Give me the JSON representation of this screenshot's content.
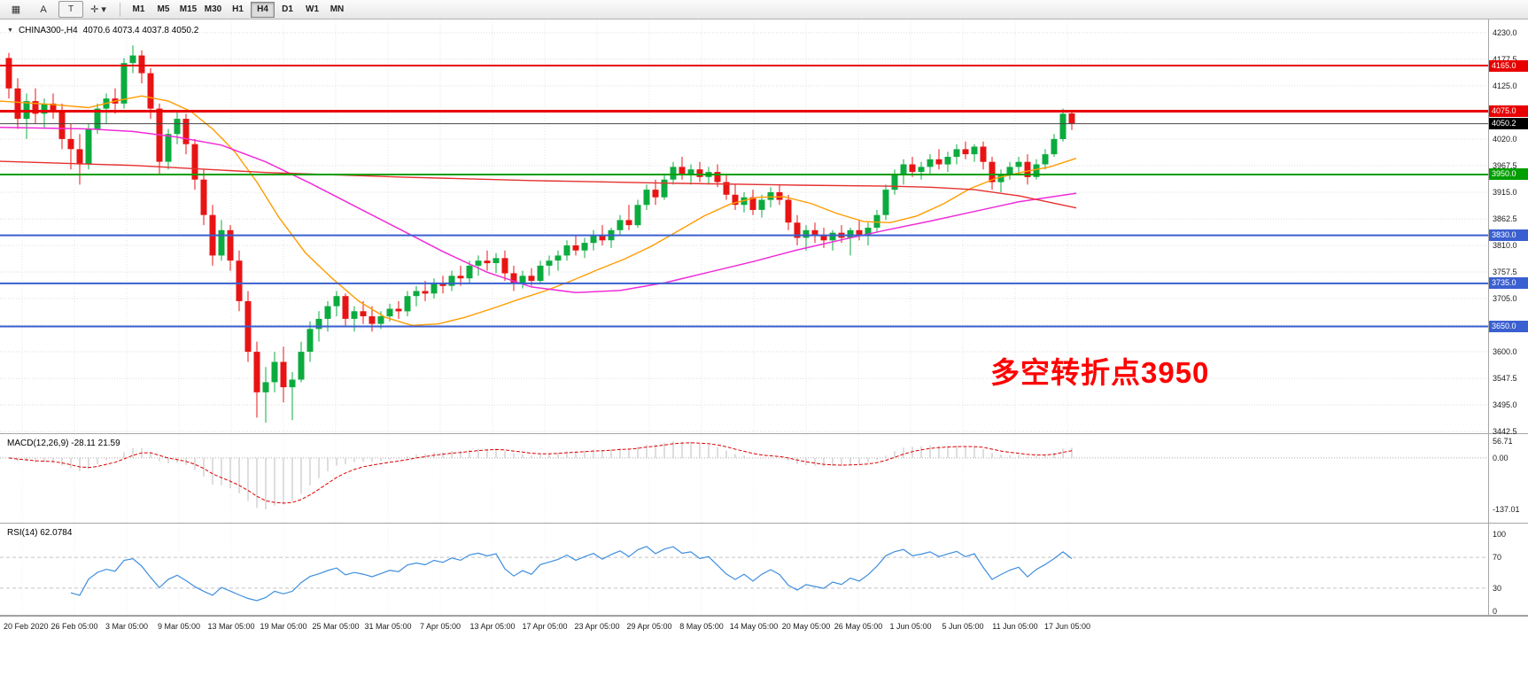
{
  "toolbar": {
    "icons": [
      {
        "name": "chart-window-icon",
        "glyph": "▦"
      },
      {
        "name": "annotation-a-icon",
        "glyph": "A"
      },
      {
        "name": "text-label-icon",
        "glyph": "T"
      },
      {
        "name": "crosshair-icon",
        "glyph": "✛ ▾"
      }
    ],
    "timeframes": [
      "M1",
      "M5",
      "M15",
      "M30",
      "H1",
      "H4",
      "D1",
      "W1",
      "MN"
    ],
    "active_timeframe": "H4"
  },
  "chart": {
    "symbol_label": "CHINA300-,H4",
    "ohlc_label": "4070.6 4073.4 4037.8 4050.2",
    "annotation": "多空转折点3950",
    "current_price": {
      "value": "4050.2",
      "price": 4050.2
    },
    "price_ticks": [
      "4230.0",
      "4177.5",
      "4125.0",
      "4072.5",
      "4020.0",
      "3967.5",
      "3915.0",
      "3862.5",
      "3810.0",
      "3757.5",
      "3705.0",
      "3652.5",
      "3600.0",
      "3547.5",
      "3495.0",
      "3442.5"
    ],
    "levels": [
      {
        "price": 4165.0,
        "label": "4165.0",
        "color": "#e80000",
        "width": 2
      },
      {
        "price": 4075.0,
        "label": "4075.0",
        "color": "#e80000",
        "width": 3
      },
      {
        "price": 3950.0,
        "label": "3950.0",
        "color": "#009e00",
        "width": 2
      },
      {
        "price": 3830.0,
        "label": "3830.0",
        "color": "#3a5fd0",
        "width": 2
      },
      {
        "price": 3735.0,
        "label": "3735.0",
        "color": "#3a5fd0",
        "width": 2
      },
      {
        "price": 3650.0,
        "label": "3650.0",
        "color": "#3a5fd0",
        "width": 2
      }
    ],
    "dates": [
      "20 Feb 2020",
      "26 Feb 05:00",
      "3 Mar 05:00",
      "9 Mar 05:00",
      "13 Mar 05:00",
      "19 Mar 05:00",
      "25 Mar 05:00",
      "31 Mar 05:00",
      "7 Apr 05:00",
      "13 Apr 05:00",
      "17 Apr 05:00",
      "23 Apr 05:00",
      "29 Apr 05:00",
      "8 May 05:00",
      "14 May 05:00",
      "20 May 05:00",
      "26 May 05:00",
      "1 Jun 05:00",
      "5 Jun 05:00",
      "11 Jun 05:00",
      "17 Jun 05:00"
    ]
  },
  "chart_data": {
    "type": "candlestick",
    "title": "CHINA300-,H4",
    "up_color": "#0cab3f",
    "down_color": "#e81414",
    "candles": [
      [
        4180,
        4190,
        4100,
        4120
      ],
      [
        4120,
        4140,
        4040,
        4060
      ],
      [
        4060,
        4110,
        4020,
        4095
      ],
      [
        4095,
        4120,
        4050,
        4070
      ],
      [
        4070,
        4100,
        4040,
        4090
      ],
      [
        4090,
        4110,
        4060,
        4075
      ],
      [
        4075,
        4090,
        4000,
        4020
      ],
      [
        4020,
        4050,
        3960,
        4000
      ],
      [
        4000,
        4030,
        3930,
        3970
      ],
      [
        3970,
        4050,
        3960,
        4040
      ],
      [
        4040,
        4090,
        4030,
        4080
      ],
      [
        4080,
        4110,
        4050,
        4100
      ],
      [
        4100,
        4120,
        4070,
        4090
      ],
      [
        4090,
        4180,
        4080,
        4170
      ],
      [
        4170,
        4205,
        4150,
        4185
      ],
      [
        4185,
        4195,
        4130,
        4150
      ],
      [
        4150,
        4160,
        4060,
        4080
      ],
      [
        4080,
        4090,
        3950,
        3975
      ],
      [
        3975,
        4040,
        3960,
        4030
      ],
      [
        4030,
        4075,
        4010,
        4060
      ],
      [
        4060,
        4070,
        3990,
        4010
      ],
      [
        4010,
        4020,
        3920,
        3940
      ],
      [
        3940,
        3960,
        3850,
        3870
      ],
      [
        3870,
        3890,
        3770,
        3790
      ],
      [
        3790,
        3860,
        3780,
        3840
      ],
      [
        3840,
        3850,
        3760,
        3780
      ],
      [
        3780,
        3800,
        3680,
        3700
      ],
      [
        3700,
        3720,
        3580,
        3600
      ],
      [
        3600,
        3620,
        3470,
        3520
      ],
      [
        3520,
        3570,
        3460,
        3540
      ],
      [
        3540,
        3600,
        3520,
        3580
      ],
      [
        3580,
        3610,
        3500,
        3530
      ],
      [
        3530,
        3560,
        3465,
        3545
      ],
      [
        3545,
        3620,
        3540,
        3600
      ],
      [
        3600,
        3660,
        3580,
        3645
      ],
      [
        3645,
        3680,
        3620,
        3665
      ],
      [
        3665,
        3700,
        3640,
        3690
      ],
      [
        3690,
        3720,
        3670,
        3710
      ],
      [
        3710,
        3715,
        3650,
        3665
      ],
      [
        3665,
        3690,
        3640,
        3680
      ],
      [
        3680,
        3700,
        3655,
        3670
      ],
      [
        3670,
        3690,
        3640,
        3655
      ],
      [
        3655,
        3680,
        3645,
        3670
      ],
      [
        3670,
        3695,
        3660,
        3685
      ],
      [
        3685,
        3700,
        3665,
        3680
      ],
      [
        3680,
        3720,
        3670,
        3710
      ],
      [
        3710,
        3730,
        3690,
        3720
      ],
      [
        3720,
        3740,
        3700,
        3715
      ],
      [
        3715,
        3745,
        3705,
        3735
      ],
      [
        3735,
        3750,
        3715,
        3730
      ],
      [
        3730,
        3760,
        3720,
        3750
      ],
      [
        3750,
        3770,
        3730,
        3745
      ],
      [
        3745,
        3780,
        3735,
        3770
      ],
      [
        3770,
        3790,
        3750,
        3780
      ],
      [
        3780,
        3800,
        3760,
        3775
      ],
      [
        3775,
        3795,
        3755,
        3785
      ],
      [
        3785,
        3800,
        3740,
        3755
      ],
      [
        3755,
        3770,
        3720,
        3735
      ],
      [
        3735,
        3760,
        3725,
        3750
      ],
      [
        3750,
        3765,
        3730,
        3740
      ],
      [
        3740,
        3780,
        3735,
        3770
      ],
      [
        3770,
        3790,
        3750,
        3780
      ],
      [
        3780,
        3800,
        3760,
        3790
      ],
      [
        3790,
        3820,
        3780,
        3810
      ],
      [
        3810,
        3830,
        3790,
        3800
      ],
      [
        3800,
        3825,
        3785,
        3815
      ],
      [
        3815,
        3840,
        3800,
        3830
      ],
      [
        3830,
        3850,
        3810,
        3820
      ],
      [
        3820,
        3845,
        3805,
        3840
      ],
      [
        3840,
        3870,
        3830,
        3860
      ],
      [
        3860,
        3890,
        3840,
        3850
      ],
      [
        3850,
        3900,
        3845,
        3890
      ],
      [
        3890,
        3930,
        3880,
        3920
      ],
      [
        3920,
        3940,
        3890,
        3905
      ],
      [
        3905,
        3950,
        3900,
        3940
      ],
      [
        3940,
        3975,
        3930,
        3965
      ],
      [
        3965,
        3985,
        3940,
        3950
      ],
      [
        3950,
        3970,
        3930,
        3960
      ],
      [
        3960,
        3975,
        3935,
        3945
      ],
      [
        3945,
        3965,
        3930,
        3955
      ],
      [
        3955,
        3970,
        3925,
        3935
      ],
      [
        3935,
        3950,
        3900,
        3910
      ],
      [
        3910,
        3930,
        3880,
        3890
      ],
      [
        3890,
        3915,
        3875,
        3905
      ],
      [
        3905,
        3920,
        3870,
        3880
      ],
      [
        3880,
        3910,
        3865,
        3900
      ],
      [
        3900,
        3925,
        3885,
        3915
      ],
      [
        3915,
        3930,
        3890,
        3900
      ],
      [
        3900,
        3910,
        3840,
        3855
      ],
      [
        3855,
        3870,
        3810,
        3825
      ],
      [
        3825,
        3850,
        3800,
        3840
      ],
      [
        3840,
        3855,
        3815,
        3830
      ],
      [
        3830,
        3845,
        3805,
        3820
      ],
      [
        3820,
        3840,
        3800,
        3835
      ],
      [
        3835,
        3850,
        3815,
        3825
      ],
      [
        3825,
        3845,
        3790,
        3840
      ],
      [
        3840,
        3860,
        3820,
        3830
      ],
      [
        3830,
        3855,
        3810,
        3845
      ],
      [
        3845,
        3880,
        3835,
        3870
      ],
      [
        3870,
        3930,
        3860,
        3920
      ],
      [
        3920,
        3960,
        3910,
        3950
      ],
      [
        3950,
        3980,
        3930,
        3970
      ],
      [
        3970,
        3985,
        3945,
        3955
      ],
      [
        3955,
        3975,
        3940,
        3965
      ],
      [
        3965,
        3990,
        3950,
        3980
      ],
      [
        3980,
        4000,
        3960,
        3970
      ],
      [
        3970,
        3995,
        3955,
        3985
      ],
      [
        3985,
        4010,
        3970,
        4000
      ],
      [
        4000,
        4015,
        3980,
        3990
      ],
      [
        3990,
        4010,
        3975,
        4005
      ],
      [
        4005,
        4015,
        3960,
        3975
      ],
      [
        3975,
        3985,
        3920,
        3935
      ],
      [
        3935,
        3960,
        3915,
        3950
      ],
      [
        3950,
        3975,
        3940,
        3965
      ],
      [
        3965,
        3985,
        3950,
        3975
      ],
      [
        3975,
        3990,
        3930,
        3945
      ],
      [
        3945,
        3980,
        3940,
        3970
      ],
      [
        3970,
        4000,
        3960,
        3990
      ],
      [
        3990,
        4030,
        3985,
        4020
      ],
      [
        4020,
        4080,
        4015,
        4070
      ],
      [
        4070.6,
        4073.4,
        4037.8,
        4050.2
      ]
    ],
    "ma_lines": [
      {
        "name": "ma-fast-orange",
        "color": "#ff9c00",
        "width": 1.4,
        "points": [
          [
            0,
            4095
          ],
          [
            60,
            4088
          ],
          [
            100,
            4082
          ],
          [
            130,
            4095
          ],
          [
            160,
            4105
          ],
          [
            190,
            4095
          ],
          [
            215,
            4075
          ],
          [
            240,
            4040
          ],
          [
            265,
            3995
          ],
          [
            290,
            3935
          ],
          [
            315,
            3865
          ],
          [
            345,
            3795
          ],
          [
            375,
            3745
          ],
          [
            405,
            3700
          ],
          [
            435,
            3668
          ],
          [
            465,
            3652
          ],
          [
            495,
            3655
          ],
          [
            525,
            3668
          ],
          [
            555,
            3685
          ],
          [
            585,
            3703
          ],
          [
            615,
            3720
          ],
          [
            645,
            3740
          ],
          [
            675,
            3762
          ],
          [
            705,
            3783
          ],
          [
            735,
            3808
          ],
          [
            765,
            3838
          ],
          [
            795,
            3868
          ],
          [
            825,
            3892
          ],
          [
            855,
            3905
          ],
          [
            885,
            3906
          ],
          [
            915,
            3893
          ],
          [
            945,
            3873
          ],
          [
            975,
            3857
          ],
          [
            1005,
            3855
          ],
          [
            1035,
            3868
          ],
          [
            1065,
            3892
          ],
          [
            1095,
            3922
          ],
          [
            1125,
            3943
          ],
          [
            1155,
            3955
          ],
          [
            1185,
            3965
          ],
          [
            1215,
            3982
          ]
        ]
      },
      {
        "name": "ma-mid-magenta",
        "color": "#f02cd8",
        "width": 1.5,
        "points": [
          [
            0,
            4043
          ],
          [
            100,
            4040
          ],
          [
            150,
            4035
          ],
          [
            200,
            4024
          ],
          [
            250,
            4008
          ],
          [
            300,
            3975
          ],
          [
            350,
            3933
          ],
          [
            400,
            3888
          ],
          [
            450,
            3843
          ],
          [
            500,
            3798
          ],
          [
            550,
            3757
          ],
          [
            600,
            3728
          ],
          [
            650,
            3717
          ],
          [
            700,
            3721
          ],
          [
            750,
            3736
          ],
          [
            800,
            3757
          ],
          [
            850,
            3778
          ],
          [
            900,
            3801
          ],
          [
            950,
            3821
          ],
          [
            1000,
            3840
          ],
          [
            1050,
            3858
          ],
          [
            1100,
            3877
          ],
          [
            1150,
            3896
          ],
          [
            1215,
            3913
          ]
        ]
      },
      {
        "name": "ma-slow-red",
        "color": "#e63030",
        "width": 1.4,
        "points": [
          [
            0,
            3976
          ],
          [
            150,
            3968
          ],
          [
            300,
            3954
          ],
          [
            450,
            3945
          ],
          [
            600,
            3938
          ],
          [
            750,
            3933
          ],
          [
            900,
            3929
          ],
          [
            1000,
            3927
          ],
          [
            1050,
            3925
          ],
          [
            1100,
            3920
          ],
          [
            1150,
            3908
          ],
          [
            1215,
            3884
          ]
        ]
      }
    ]
  },
  "macd": {
    "label": "MACD(12,26,9) -28.11 21.59",
    "axis": [
      "56.71",
      "0.00",
      "-137.01"
    ]
  },
  "rsi": {
    "label": "RSI(14) 62.0784",
    "axis": [
      "100",
      "70",
      "30",
      "0"
    ],
    "axis_values": [
      100,
      70,
      30,
      0
    ],
    "levels": [
      70,
      30
    ]
  }
}
